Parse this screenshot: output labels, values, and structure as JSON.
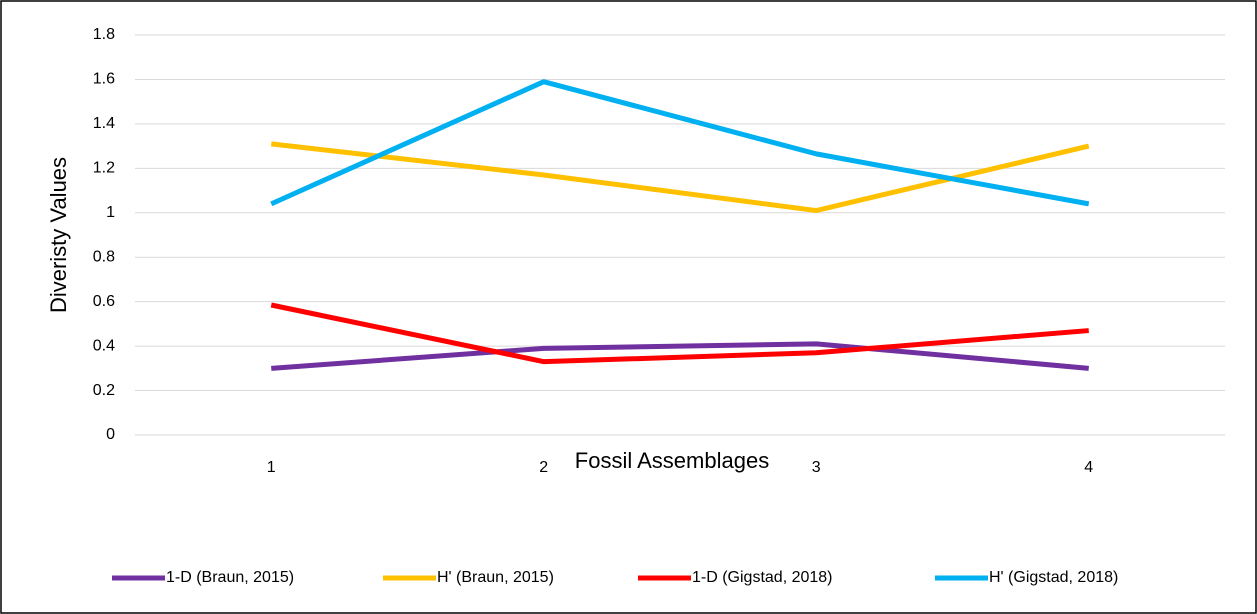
{
  "chart_data": {
    "type": "line",
    "x_label": "Fossil Assemblages",
    "y_label": "Diveristy Values",
    "categories": [
      "1",
      "2",
      "3",
      "4"
    ],
    "series": [
      {
        "name": "1-D (Braun, 2015)",
        "color": "#7030a0",
        "values": [
          0.3,
          0.39,
          0.41,
          0.3
        ]
      },
      {
        "name": "H' (Braun, 2015)",
        "color": "#ffc000",
        "values": [
          1.31,
          1.17,
          1.01,
          1.3
        ]
      },
      {
        "name": "1-D (Gigstad, 2018)",
        "color": "#ff0000",
        "values": [
          0.585,
          0.33,
          0.37,
          0.47
        ]
      },
      {
        "name": "H' (Gigstad, 2018)",
        "color": "#00b0f0",
        "values": [
          1.04,
          1.59,
          1.265,
          1.04
        ]
      }
    ],
    "ylim": [
      0,
      1.8
    ],
    "yticks": [
      0,
      0.2,
      0.4,
      0.6,
      0.8,
      1,
      1.2,
      1.4,
      1.6,
      1.8
    ],
    "grid": true,
    "legend": "bottom"
  }
}
